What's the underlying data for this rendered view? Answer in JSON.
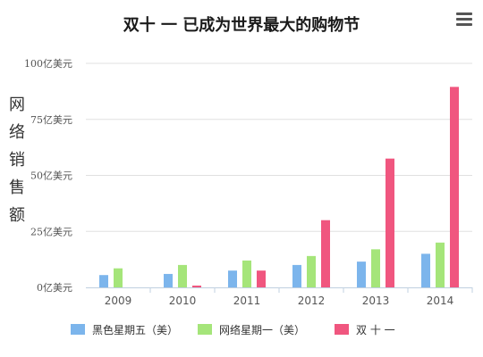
{
  "chart_data": {
    "type": "bar",
    "title": "双十 一 已成为世界最大的购物节",
    "ylabel": "网络销售额",
    "categories": [
      "2009",
      "2010",
      "2011",
      "2012",
      "2013",
      "2014"
    ],
    "ylim": [
      0,
      100
    ],
    "yticks": [
      {
        "value": 0,
        "label": "0亿美元"
      },
      {
        "value": 25,
        "label": "25亿美元"
      },
      {
        "value": 50,
        "label": "50亿美元"
      },
      {
        "value": 75,
        "label": "75亿美元"
      },
      {
        "value": 100,
        "label": "100亿美元"
      }
    ],
    "grid": true,
    "legend": "bottom",
    "series": [
      {
        "name": "黑色星期五（美）",
        "color": "#7cb5ec",
        "values": [
          5.5,
          6,
          7.5,
          10,
          11.5,
          15
        ]
      },
      {
        "name": "网络星期一（美）",
        "color": "#a5e57a",
        "values": [
          8.5,
          10,
          12,
          14,
          17,
          20
        ]
      },
      {
        "name": "双 十 一",
        "color": "#f0567f",
        "values": [
          0,
          0.8,
          7.5,
          30,
          57.5,
          89.5
        ]
      }
    ]
  },
  "toolbar": {
    "menu_icon": "hamburger-menu-icon"
  }
}
